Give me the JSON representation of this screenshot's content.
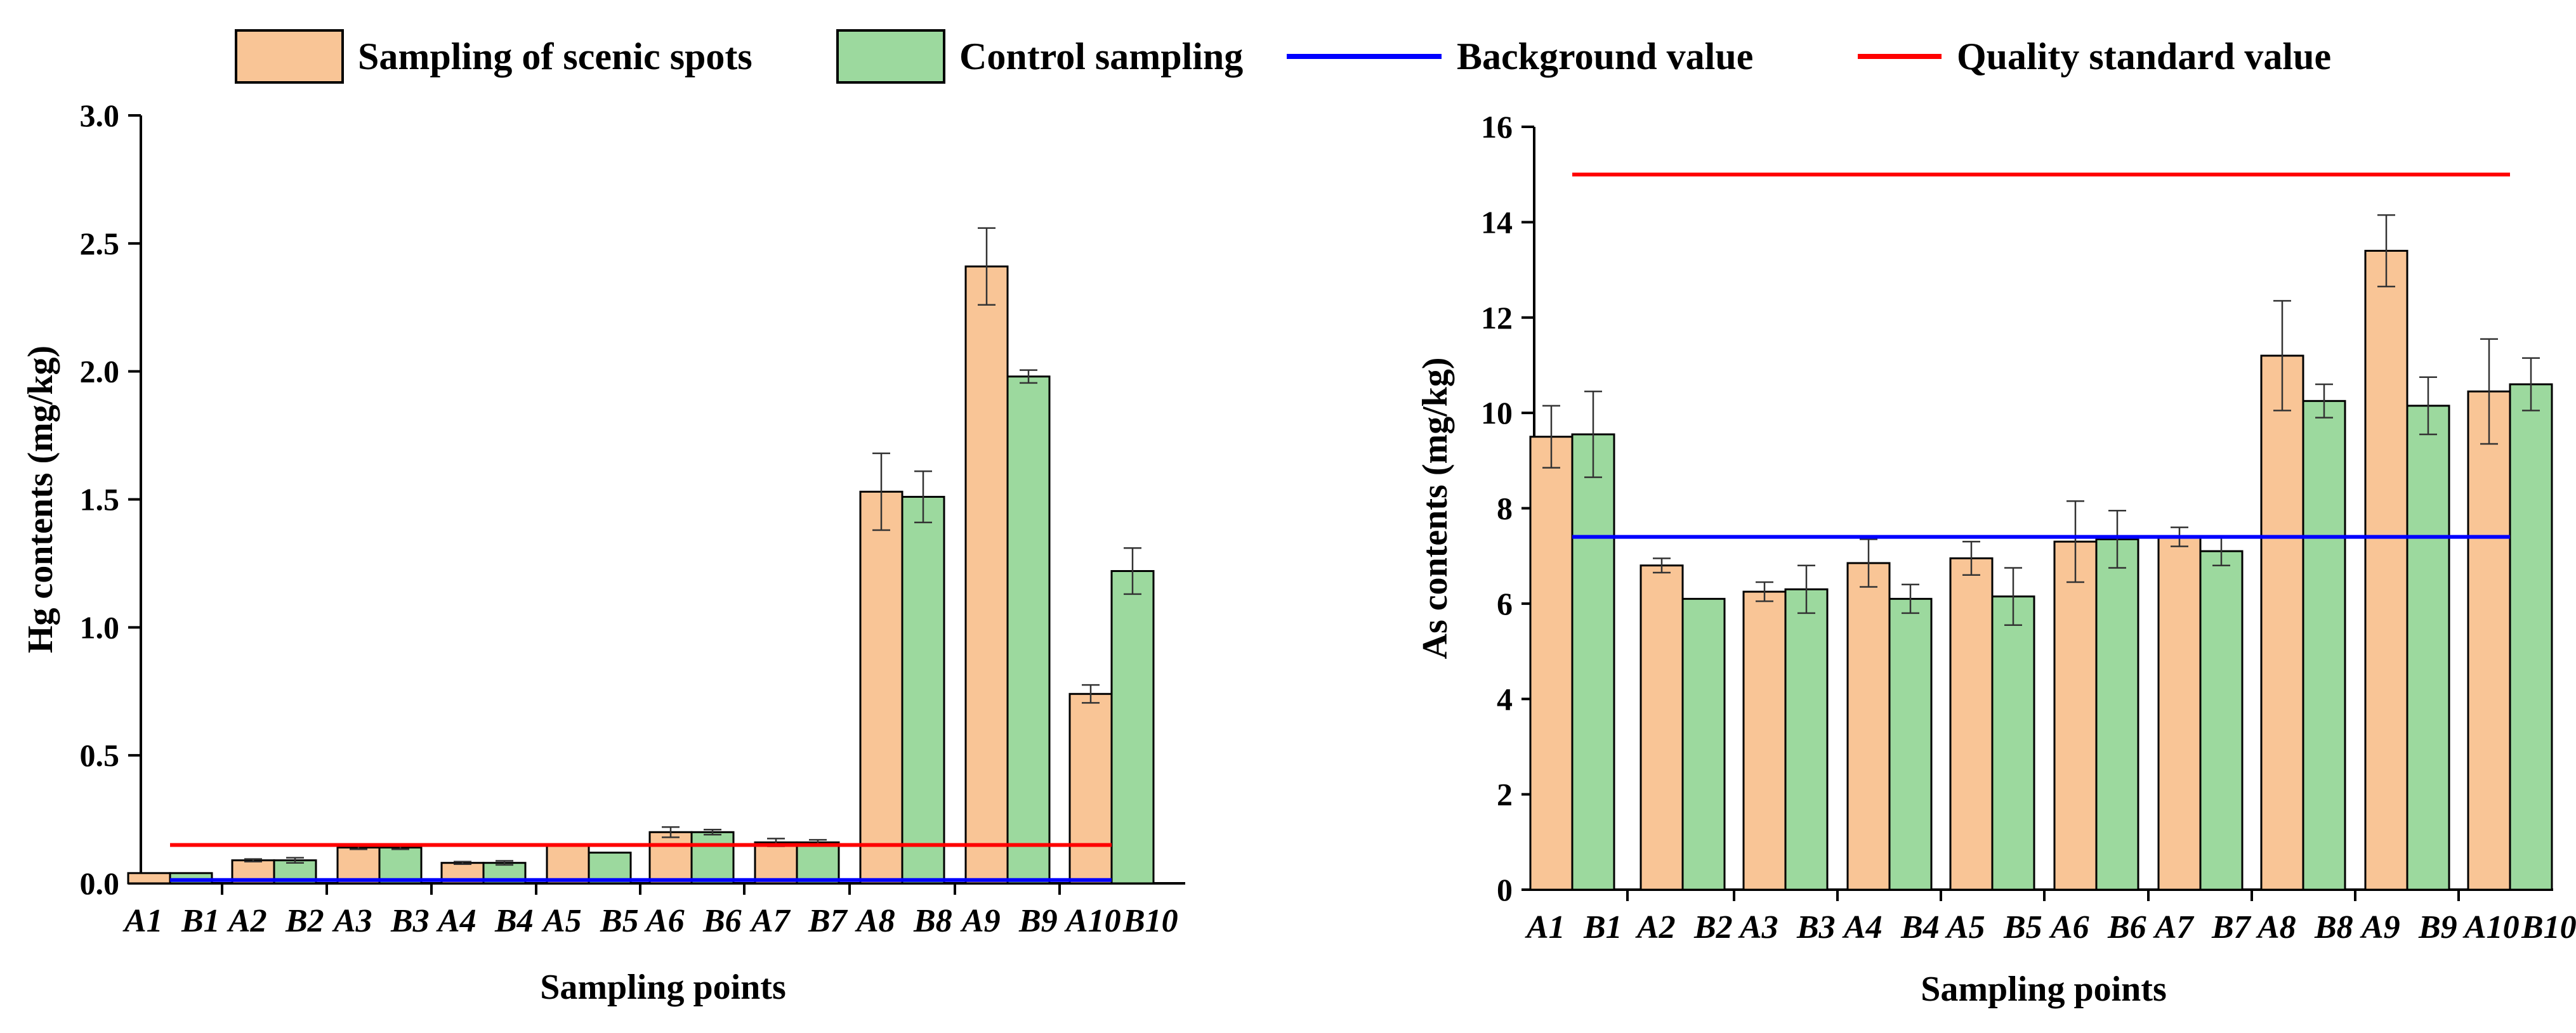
{
  "legend": {
    "items": [
      {
        "label": "Sampling of scenic spots",
        "kind": "box",
        "color": "#f9c596"
      },
      {
        "label": "Control sampling",
        "kind": "box",
        "color": "#9cd99e"
      },
      {
        "label": "Background value",
        "kind": "line",
        "color": "#0000ff"
      },
      {
        "label": "Quality standard value",
        "kind": "line",
        "color": "#ff0000"
      }
    ]
  },
  "colors": {
    "scenic": "#f9c596",
    "control": "#9cd99e",
    "background_line": "#0000ff",
    "standard_line": "#ff0000"
  },
  "chart_data": [
    {
      "type": "bar",
      "title": "",
      "xlabel": "Sampling points",
      "ylabel": "Hg contents (mg/kg)",
      "ylim": [
        0,
        3.0
      ],
      "yticks": [
        0.0,
        0.5,
        1.0,
        1.5,
        2.0,
        2.5,
        3.0
      ],
      "ytick_labels": [
        "0.0",
        "0.5",
        "1.0",
        "1.5",
        "2.0",
        "2.5",
        "3.0"
      ],
      "categories": [
        "A1 B1",
        "A2 B2",
        "A3 B3",
        "A4 B4",
        "A5 B5",
        "A6 B6",
        "A7 B7",
        "A8 B8",
        "A9 B9",
        "A10 B10"
      ],
      "category_labels": [
        [
          "A1",
          "B1"
        ],
        [
          "A2",
          "B2"
        ],
        [
          "A3",
          "B3"
        ],
        [
          "A4",
          "B4"
        ],
        [
          "A5",
          "B5"
        ],
        [
          "A6",
          "B6"
        ],
        [
          "A7",
          "B7"
        ],
        [
          "A8",
          "B8"
        ],
        [
          "A9",
          "B9"
        ],
        [
          "A10",
          "B10"
        ]
      ],
      "series": [
        {
          "name": "Sampling of scenic spots",
          "values": [
            0.04,
            0.09,
            0.14,
            0.08,
            0.15,
            0.2,
            0.16,
            1.53,
            2.41,
            0.74
          ],
          "errors": [
            0,
            0.005,
            0.007,
            0.005,
            0,
            0.02,
            0.015,
            0.15,
            0.15,
            0.035
          ]
        },
        {
          "name": "Control sampling",
          "values": [
            0.04,
            0.09,
            0.14,
            0.08,
            0.12,
            0.2,
            0.16,
            1.51,
            1.98,
            1.22
          ],
          "errors": [
            0,
            0.01,
            0.007,
            0.008,
            0,
            0.01,
            0.01,
            0.1,
            0.025,
            0.09
          ]
        }
      ],
      "reference_lines": [
        {
          "name": "Background value",
          "value": 0.013
        },
        {
          "name": "Quality standard value",
          "value": 0.15
        }
      ]
    },
    {
      "type": "bar",
      "title": "",
      "xlabel": "Sampling points",
      "ylabel": "As contents (mg/kg)",
      "ylim": [
        0,
        16
      ],
      "yticks": [
        0,
        2,
        4,
        6,
        8,
        10,
        12,
        14,
        16
      ],
      "ytick_labels": [
        "0",
        "2",
        "4",
        "6",
        "8",
        "10",
        "12",
        "14",
        "16"
      ],
      "categories": [
        "A1 B1",
        "A2 B2",
        "A3 B3",
        "A4 B4",
        "A5 B5",
        "A6 B6",
        "A7 B7",
        "A8 B8",
        "A9 B9",
        "A10 B10"
      ],
      "category_labels": [
        [
          "A1",
          "B1"
        ],
        [
          "A2",
          "B2"
        ],
        [
          "A3",
          "B3"
        ],
        [
          "A4",
          "B4"
        ],
        [
          "A5",
          "B5"
        ],
        [
          "A6",
          "B6"
        ],
        [
          "A7",
          "B7"
        ],
        [
          "A8",
          "B8"
        ],
        [
          "A9",
          "B9"
        ],
        [
          "A10",
          "B10"
        ]
      ],
      "series": [
        {
          "name": "Sampling of scenic spots",
          "values": [
            9.5,
            6.8,
            6.25,
            6.85,
            6.95,
            7.3,
            7.4,
            11.2,
            13.4,
            10.45
          ],
          "errors": [
            0.65,
            0.15,
            0.2,
            0.5,
            0.35,
            0.85,
            0.2,
            1.15,
            0.75,
            1.1
          ]
        },
        {
          "name": "Control sampling",
          "values": [
            9.55,
            6.1,
            6.3,
            6.1,
            6.15,
            7.35,
            7.1,
            10.25,
            10.15,
            10.6
          ],
          "errors": [
            0.9,
            0,
            0.5,
            0.3,
            0.6,
            0.6,
            0.3,
            0.35,
            0.6,
            0.55
          ]
        }
      ],
      "reference_lines": [
        {
          "name": "Background value",
          "value": 7.4
        },
        {
          "name": "Quality standard value",
          "value": 15
        }
      ]
    }
  ]
}
